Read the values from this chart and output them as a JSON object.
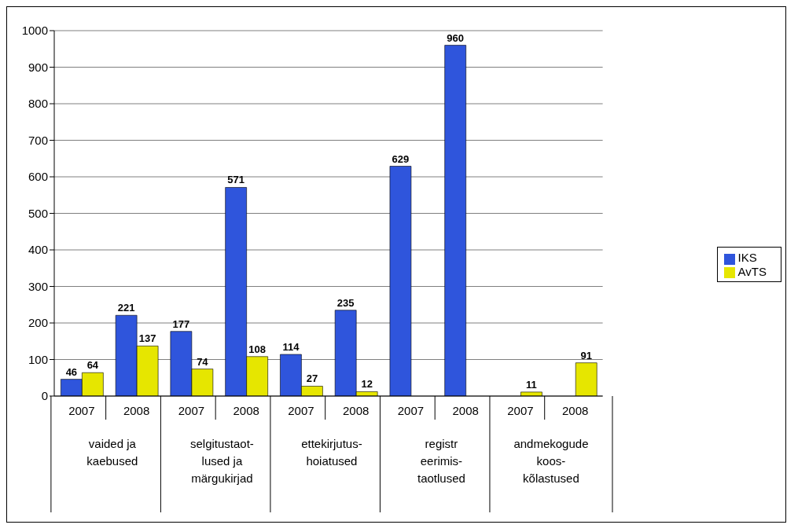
{
  "chart_data": {
    "type": "bar",
    "categories": [
      "2007",
      "2008",
      "2007",
      "2008",
      "2007",
      "2008",
      "2007",
      "2008",
      "2007",
      "2008"
    ],
    "series": [
      {
        "name": "IKS",
        "color": "#2f55dc",
        "values": [
          46,
          221,
          177,
          571,
          114,
          235,
          629,
          960,
          null,
          null
        ]
      },
      {
        "name": "AvTS",
        "color": "#e6e600",
        "values": [
          64,
          137,
          74,
          108,
          27,
          12,
          null,
          null,
          11,
          91
        ]
      }
    ],
    "annotations": [
      "vaided ja\nkaebused",
      "selgitustaot-\nlused ja\nmärgukirjad",
      "ettekirjutus-\nhoiatused",
      "registr\neerimis-\ntaotlused",
      "andmekogude\nkoos-\nkõlastused"
    ],
    "ylim": [
      0,
      1000
    ],
    "yticks": [
      0,
      100,
      200,
      300,
      400,
      500,
      600,
      700,
      800,
      900,
      1000
    ],
    "grid": "y",
    "legend": "right",
    "data_labels": true
  }
}
